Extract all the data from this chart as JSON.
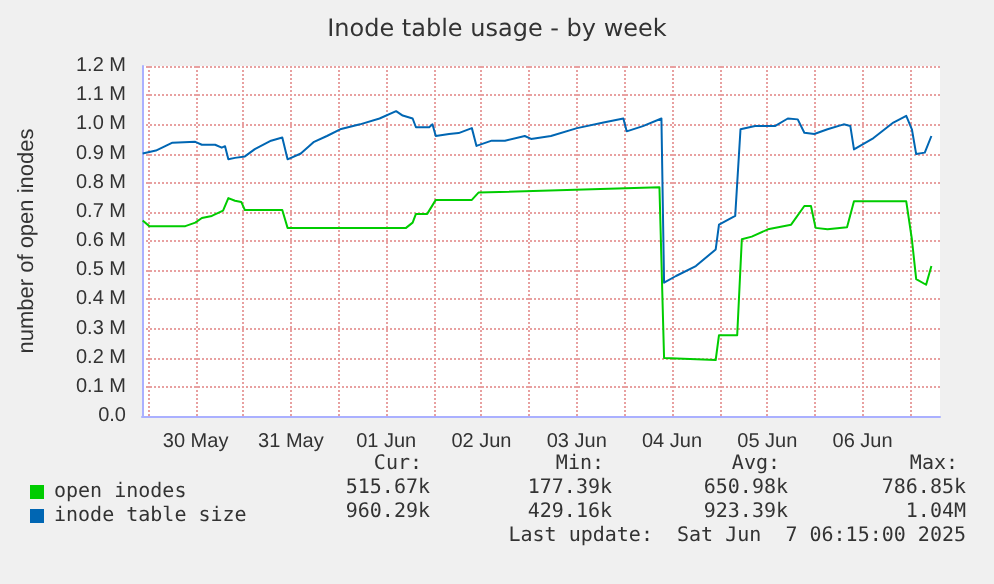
{
  "chart_data": {
    "type": "line",
    "title": "Inode table usage - by week",
    "ylabel": "number of open inodes",
    "xlim": [
      "2025-05-29T22:30",
      "2025-06-07T07:30"
    ],
    "xticks": [
      {
        "value": "2025-05-30T00:00",
        "label": null
      },
      {
        "value": "2025-05-30T12:00",
        "label": "30 May"
      },
      {
        "value": "2025-05-31T00:00",
        "label": null
      },
      {
        "value": "2025-05-31T12:00",
        "label": "31 May"
      },
      {
        "value": "2025-06-01T00:00",
        "label": null
      },
      {
        "value": "2025-06-01T12:00",
        "label": "01 Jun"
      },
      {
        "value": "2025-06-02T00:00",
        "label": null
      },
      {
        "value": "2025-06-02T12:00",
        "label": "02 Jun"
      },
      {
        "value": "2025-06-03T00:00",
        "label": null
      },
      {
        "value": "2025-06-03T12:00",
        "label": "03 Jun"
      },
      {
        "value": "2025-06-04T00:00",
        "label": null
      },
      {
        "value": "2025-06-04T12:00",
        "label": "04 Jun"
      },
      {
        "value": "2025-06-05T00:00",
        "label": null
      },
      {
        "value": "2025-06-05T12:00",
        "label": "05 Jun"
      },
      {
        "value": "2025-06-06T00:00",
        "label": null
      },
      {
        "value": "2025-06-06T12:00",
        "label": "06 Jun"
      },
      {
        "value": "2025-06-07T00:00",
        "label": null
      }
    ],
    "ylim": [
      0,
      1200000
    ],
    "yticks": [
      {
        "value": 0,
        "label": "0.0"
      },
      {
        "value": 100000,
        "label": "0.1 M"
      },
      {
        "value": 200000,
        "label": "0.2 M"
      },
      {
        "value": 300000,
        "label": "0.3 M"
      },
      {
        "value": 400000,
        "label": "0.4 M"
      },
      {
        "value": 500000,
        "label": "0.5 M"
      },
      {
        "value": 600000,
        "label": "0.6 M"
      },
      {
        "value": 700000,
        "label": "0.7 M"
      },
      {
        "value": 800000,
        "label": "0.8 M"
      },
      {
        "value": 900000,
        "label": "0.9 M"
      },
      {
        "value": 1000000,
        "label": "1.0 M"
      },
      {
        "value": 1100000,
        "label": "1.1 M"
      },
      {
        "value": 1200000,
        "label": "1.2 M"
      }
    ],
    "grid": true,
    "legend": "bottom",
    "marker": "none",
    "line_style": "solid",
    "series": [
      {
        "name": "open inodes",
        "color": "#00cc00",
        "x": [
          "2025-05-29T22:40",
          "2025-05-30T00:20",
          "2025-05-30T09:25",
          "2025-05-30T11:55",
          "2025-05-30T13:35",
          "2025-05-30T16:05",
          "2025-05-30T18:55",
          "2025-05-30T20:15",
          "2025-05-30T21:55",
          "2025-05-30T23:30",
          "2025-05-31T00:25",
          "2025-05-31T09:50",
          "2025-05-31T11:10",
          "2025-06-01T17:00",
          "2025-06-01T18:40",
          "2025-06-01T19:30",
          "2025-06-01T22:20",
          "2025-06-02T00:30",
          "2025-06-02T09:35",
          "2025-06-02T11:15",
          "2025-06-04T08:50",
          "2025-06-04T10:00",
          "2025-06-04T23:00",
          "2025-06-04T23:50",
          "2025-06-05T04:25",
          "2025-06-05T05:35",
          "2025-06-05T08:05",
          "2025-06-05T12:10",
          "2025-06-05T18:00",
          "2025-06-05T21:20",
          "2025-06-05T23:00",
          "2025-06-06T00:10",
          "2025-06-06T03:10",
          "2025-06-06T08:05",
          "2025-06-06T09:50",
          "2025-06-06T23:00",
          "2025-06-07T00:25",
          "2025-06-07T01:30",
          "2025-06-07T04:00",
          "2025-06-07T05:20"
        ],
        "values": [
          670000,
          651000,
          651000,
          663000,
          679000,
          686000,
          704000,
          747000,
          738000,
          734000,
          706000,
          706000,
          645000,
          645000,
          663000,
          693000,
          693000,
          741000,
          741000,
          766000,
          784000,
          199000,
          192000,
          277000,
          277000,
          606000,
          615000,
          640000,
          656000,
          720000,
          720000,
          645000,
          640000,
          647000,
          736000,
          736000,
          606000,
          469000,
          450000,
          514000
        ]
      },
      {
        "name": "inode table size",
        "color": "#0066b3",
        "x": [
          "2025-05-29T22:40",
          "2025-05-30T02:00",
          "2025-05-30T06:10",
          "2025-05-30T11:55",
          "2025-05-30T13:35",
          "2025-05-30T16:55",
          "2025-05-30T18:35",
          "2025-05-30T19:25",
          "2025-05-30T20:15",
          "2025-05-30T21:55",
          "2025-05-31T00:25",
          "2025-05-31T02:55",
          "2025-05-31T07:00",
          "2025-05-31T09:50",
          "2025-05-31T11:10",
          "2025-05-31T14:30",
          "2025-05-31T17:50",
          "2025-05-31T21:05",
          "2025-06-01T00:25",
          "2025-06-01T05:25",
          "2025-06-01T10:20",
          "2025-06-01T14:30",
          "2025-06-01T16:10",
          "2025-06-01T18:40",
          "2025-06-01T19:30",
          "2025-06-01T22:50",
          "2025-06-01T23:40",
          "2025-06-02T00:30",
          "2025-06-02T03:50",
          "2025-06-02T06:15",
          "2025-06-02T09:35",
          "2025-06-02T10:45",
          "2025-06-02T14:35",
          "2025-06-02T17:55",
          "2025-06-02T22:55",
          "2025-06-03T00:30",
          "2025-06-03T05:30",
          "2025-06-03T12:05",
          "2025-06-03T18:45",
          "2025-06-03T23:45",
          "2025-06-04T00:35",
          "2025-06-04T04:40",
          "2025-06-04T09:20",
          "2025-06-04T10:00",
          "2025-06-04T13:00",
          "2025-06-04T18:00",
          "2025-06-04T23:00",
          "2025-06-04T23:50",
          "2025-06-05T03:55",
          "2025-06-05T05:15",
          "2025-06-05T08:55",
          "2025-06-05T13:55",
          "2025-06-05T17:10",
          "2025-06-05T19:40",
          "2025-06-05T21:20",
          "2025-06-05T23:50",
          "2025-06-06T03:10",
          "2025-06-06T07:15",
          "2025-06-06T08:55",
          "2025-06-06T09:50",
          "2025-06-06T14:45",
          "2025-06-06T19:45",
          "2025-06-06T23:00",
          "2025-06-07T00:25",
          "2025-06-07T01:30",
          "2025-06-07T03:40",
          "2025-06-07T05:20"
        ],
        "values": [
          900000,
          910000,
          937000,
          940000,
          930000,
          930000,
          920000,
          925000,
          880000,
          885000,
          890000,
          915000,
          944000,
          955000,
          880000,
          900000,
          940000,
          960000,
          983000,
          1000000,
          1020000,
          1045000,
          1030000,
          1020000,
          990000,
          990000,
          1000000,
          960000,
          967000,
          970000,
          987000,
          926000,
          944000,
          944000,
          960000,
          950000,
          960000,
          987000,
          1006000,
          1020000,
          976000,
          994000,
          1020000,
          457000,
          480000,
          514000,
          571000,
          656000,
          686000,
          983000,
          994000,
          994000,
          1020000,
          1017000,
          971000,
          967000,
          983000,
          1000000,
          994000,
          914000,
          953000,
          1006000,
          1029000,
          983000,
          898000,
          903000,
          960000
        ]
      }
    ],
    "annotations": [
      "Cur:",
      "Min:",
      "Avg:",
      "Max:",
      "515.67k",
      "177.39k",
      "650.98k",
      "786.85k",
      "960.29k",
      "429.16k",
      "923.39k",
      "1.04M",
      "Last update:  Sat Jun  7 06:15:00 2025"
    ]
  }
}
